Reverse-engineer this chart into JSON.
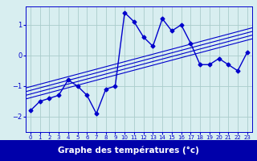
{
  "x": [
    0,
    1,
    2,
    3,
    4,
    5,
    6,
    7,
    8,
    9,
    10,
    11,
    12,
    13,
    14,
    15,
    16,
    17,
    18,
    19,
    20,
    21,
    22,
    23
  ],
  "y": [
    -1.8,
    -1.5,
    -1.4,
    -1.3,
    -0.8,
    -1.0,
    -1.3,
    -1.9,
    -1.1,
    -1.0,
    1.4,
    1.1,
    0.6,
    0.3,
    1.2,
    0.8,
    1.0,
    0.4,
    -0.3,
    -0.3,
    -0.1,
    -0.3,
    -0.5,
    0.1
  ],
  "bg_color": "#d8eef0",
  "line_color": "#0000cc",
  "marker": "D",
  "markersize": 2.5,
  "linewidth": 1.0,
  "xlabel": "Graphe des températures (°c)",
  "grid_color": "#aacccc",
  "tick_color": "#0000cc",
  "ylim": [
    -2.5,
    1.6
  ],
  "xlim": [
    -0.5,
    23.5
  ],
  "yticks": [
    -2,
    -1,
    0,
    1
  ],
  "xticks": [
    0,
    1,
    2,
    3,
    4,
    5,
    6,
    7,
    8,
    9,
    10,
    11,
    12,
    13,
    14,
    15,
    16,
    17,
    18,
    19,
    20,
    21,
    22,
    23
  ],
  "trend_offsets": [
    0.0,
    0.12,
    -0.12,
    0.24
  ],
  "xlabel_bar_color": "#0000aa",
  "xlabel_text_color": "#ffffff",
  "xlabel_fontsize": 7.5
}
